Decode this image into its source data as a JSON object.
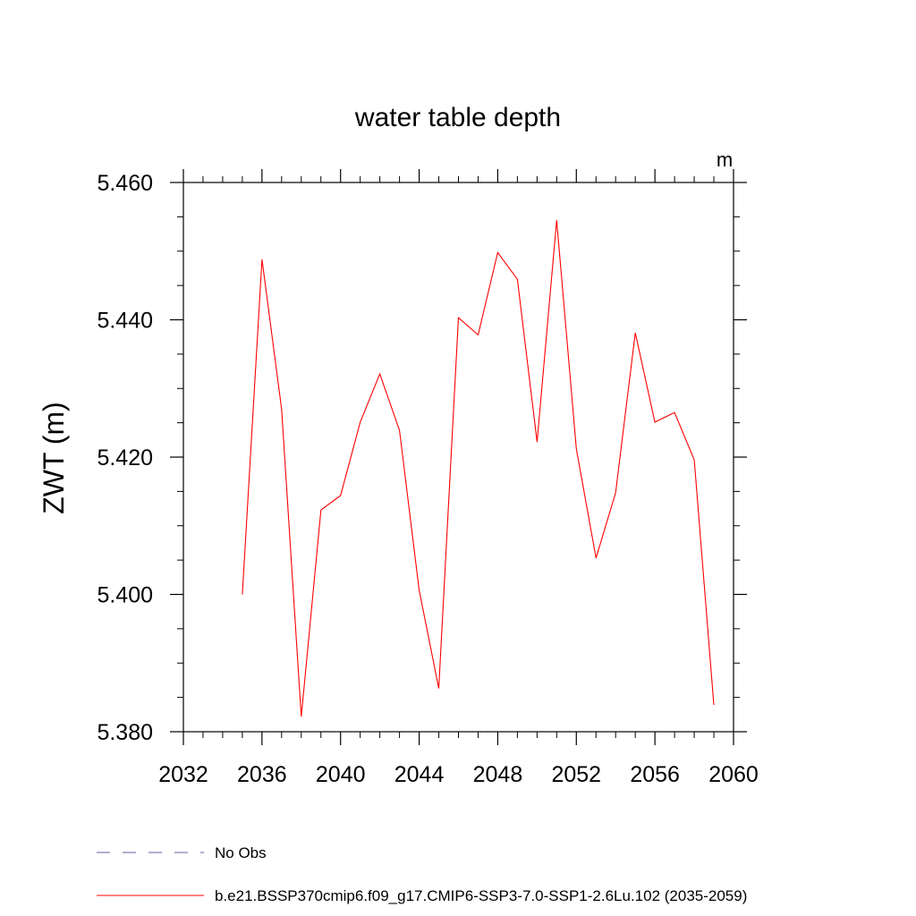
{
  "chart_data": {
    "type": "line",
    "title": "water table depth",
    "ylabel": "ZWT  (m)",
    "units": "m",
    "xlim": [
      2032,
      2060
    ],
    "ylim": [
      5.38,
      5.46
    ],
    "x_ticks": [
      2032,
      2036,
      2040,
      2044,
      2048,
      2052,
      2056,
      2060
    ],
    "x_tick_labels": [
      "2032",
      "2036",
      "2040",
      "2044",
      "2048",
      "2052",
      "2056",
      "2060"
    ],
    "y_ticks": [
      5.38,
      5.4,
      5.42,
      5.44,
      5.46
    ],
    "y_tick_labels": [
      "5.380",
      "5.400",
      "5.420",
      "5.440",
      "5.460"
    ],
    "series": [
      {
        "name": "b.e21.BSSP370cmip6.f09_g17.CMIP6-SSP3-7.0-SSP1-2.6Lu.102 (2035-2059)",
        "color": "#ff0000",
        "x": [
          2035,
          2036,
          2037,
          2038,
          2039,
          2040,
          2041,
          2042,
          2043,
          2044,
          2045,
          2046,
          2047,
          2048,
          2049,
          2050,
          2051,
          2052,
          2053,
          2054,
          2055,
          2056,
          2057,
          2058,
          2059
        ],
        "values": [
          5.4,
          5.4488,
          5.427,
          5.3822,
          5.4123,
          5.4144,
          5.4251,
          5.4321,
          5.4239,
          5.4006,
          5.3863,
          5.4403,
          5.4378,
          5.4498,
          5.4459,
          5.4222,
          5.4545,
          5.4212,
          5.4053,
          5.4148,
          5.4381,
          5.4251,
          5.4265,
          5.4196,
          5.3839
        ]
      }
    ],
    "legend": [
      {
        "label": "No Obs",
        "style": "dashed",
        "color": "#6e5a9e"
      },
      {
        "label": "b.e21.BSSP370cmip6.f09_g17.CMIP6-SSP3-7.0-SSP1-2.6Lu.102 (2035-2059)",
        "style": "solid",
        "color": "#ff0000"
      }
    ]
  }
}
